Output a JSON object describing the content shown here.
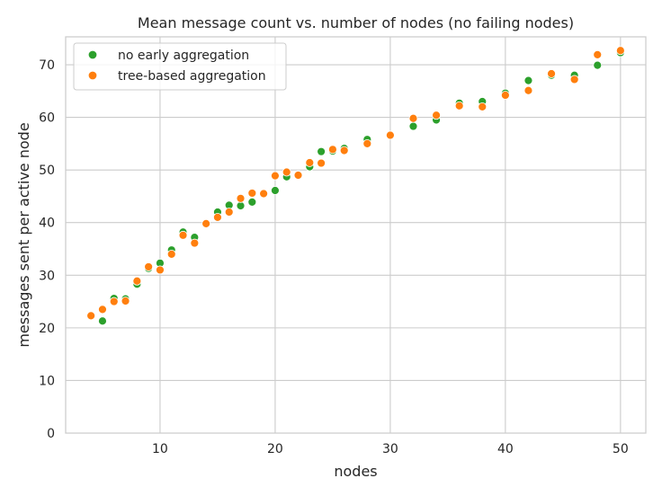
{
  "chart_data": {
    "type": "scatter",
    "title": "Mean message count vs. number of nodes (no failing nodes)",
    "xlabel": "nodes",
    "ylabel": "messages sent per active node",
    "xlim": [
      1.8,
      52.2
    ],
    "ylim": [
      0,
      75.3
    ],
    "xticks": [
      10,
      20,
      30,
      40,
      50
    ],
    "yticks": [
      0,
      10,
      20,
      30,
      40,
      50,
      60,
      70
    ],
    "grid": true,
    "legend_position": "top-left",
    "series": [
      {
        "name": "no early aggregation",
        "color": "#2ca02c",
        "x": [
          5,
          6,
          7,
          8,
          9,
          10,
          11,
          12,
          13,
          14,
          15,
          16,
          17,
          18,
          20,
          21,
          22,
          23,
          24,
          25,
          26,
          28,
          30,
          32,
          34,
          36,
          38,
          40,
          42,
          44,
          46,
          48,
          50
        ],
        "y": [
          21.3,
          25.6,
          25.5,
          28.3,
          31.3,
          32.3,
          34.8,
          38.2,
          37.2,
          39.7,
          42.0,
          43.3,
          43.2,
          43.9,
          46.1,
          48.7,
          49.1,
          50.6,
          53.5,
          53.6,
          54.1,
          55.8,
          56.6,
          58.3,
          59.5,
          62.7,
          63.0,
          64.6,
          67.0,
          68.0,
          68.0,
          69.9,
          72.3
        ]
      },
      {
        "name": "tree-based aggregation",
        "color": "#ff7f0e",
        "x": [
          4,
          5,
          6,
          7,
          8,
          9,
          10,
          11,
          12,
          13,
          14,
          15,
          16,
          17,
          18,
          19,
          20,
          21,
          22,
          23,
          24,
          25,
          26,
          28,
          30,
          32,
          34,
          36,
          38,
          40,
          42,
          44,
          46,
          48,
          50
        ],
        "y": [
          22.3,
          23.5,
          25.0,
          25.1,
          28.9,
          31.6,
          31.0,
          34.0,
          37.6,
          36.1,
          39.8,
          41.0,
          42.0,
          44.6,
          45.6,
          45.5,
          48.9,
          49.6,
          49.0,
          51.4,
          51.3,
          53.9,
          53.7,
          55.0,
          56.6,
          59.8,
          60.4,
          62.2,
          62.0,
          64.2,
          65.1,
          68.3,
          67.2,
          71.9,
          72.7
        ]
      }
    ]
  }
}
